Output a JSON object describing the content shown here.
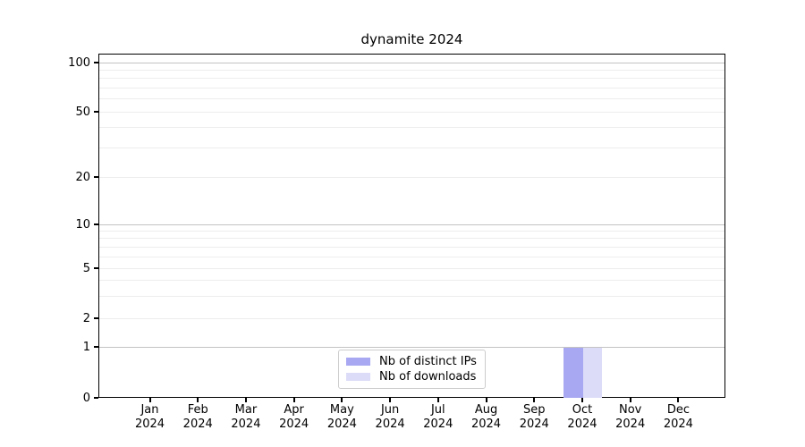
{
  "title": "dynamite 2024",
  "chart_data": {
    "type": "bar",
    "title": "dynamite 2024",
    "categories": [
      "Jan",
      "Feb",
      "Mar",
      "Apr",
      "May",
      "Jun",
      "Jul",
      "Aug",
      "Sep",
      "Oct",
      "Nov",
      "Dec"
    ],
    "category_year": "2024",
    "series": [
      {
        "name": "Nb of distinct IPs",
        "color": "#a8a8f2",
        "values": [
          0,
          0,
          0,
          0,
          0,
          0,
          0,
          0,
          0,
          1,
          0,
          0
        ]
      },
      {
        "name": "Nb of downloads",
        "color": "#dcdcf8",
        "values": [
          0,
          0,
          0,
          0,
          0,
          0,
          0,
          0,
          0,
          1,
          0,
          0
        ]
      }
    ],
    "y_ticks": [
      0,
      1,
      2,
      5,
      10,
      20,
      50,
      100
    ],
    "y_minor_ticks": [
      3,
      4,
      6,
      7,
      8,
      9,
      30,
      40,
      60,
      70,
      80,
      90
    ],
    "y_major_grid_values": [
      1,
      10,
      100
    ],
    "y_scale": "symlog",
    "ylim": [
      0,
      114
    ],
    "xlabel": "",
    "ylabel": "",
    "grid": "both",
    "legend_position": "lower center",
    "colors": {
      "major_grid": "#c3c3c3",
      "minor_grid": "#ededed",
      "axis": "#000000",
      "legend_border": "#cccccc"
    }
  }
}
